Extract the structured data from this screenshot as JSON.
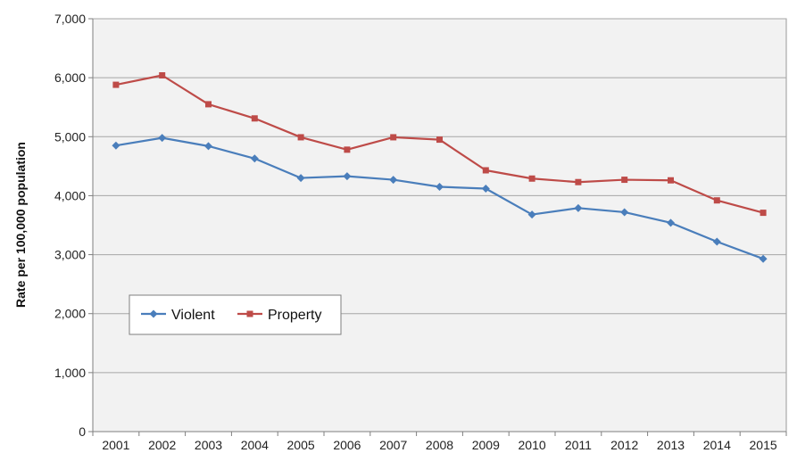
{
  "chart_data": {
    "type": "line",
    "title": "",
    "xlabel": "",
    "ylabel": "Rate per 100,000 population",
    "categories": [
      "2001",
      "2002",
      "2003",
      "2004",
      "2005",
      "2006",
      "2007",
      "2008",
      "2009",
      "2010",
      "2011",
      "2012",
      "2013",
      "2014",
      "2015"
    ],
    "ylim": [
      0,
      7000
    ],
    "yticks": [
      0,
      1000,
      2000,
      3000,
      4000,
      5000,
      6000,
      7000
    ],
    "ytick_labels": [
      "0",
      "1,000",
      "2,000",
      "3,000",
      "4,000",
      "5,000",
      "6,000",
      "7,000"
    ],
    "grid": true,
    "legend_position": "middle-left",
    "series": [
      {
        "name": "Violent",
        "color": "#4a7ebb",
        "marker": "diamond",
        "values": [
          4850,
          4980,
          4840,
          4630,
          4300,
          4330,
          4270,
          4150,
          4120,
          3680,
          3790,
          3720,
          3540,
          3220,
          2930
        ]
      },
      {
        "name": "Property",
        "color": "#be4b48",
        "marker": "square",
        "values": [
          5880,
          6040,
          5550,
          5310,
          4990,
          4780,
          4990,
          4950,
          4430,
          4290,
          4230,
          4270,
          4260,
          3920,
          3710
        ]
      }
    ],
    "colors": {
      "plot_background": "#f2f2f2",
      "gridline": "#a6a6a6",
      "axis": "#7f7f7f"
    }
  }
}
